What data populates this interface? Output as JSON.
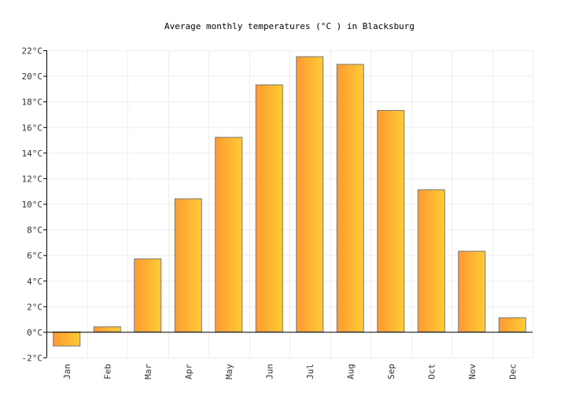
{
  "chart_data": {
    "type": "bar",
    "title": "Average monthly temperatures (°C ) in Blacksburg",
    "categories": [
      "Jan",
      "Feb",
      "Mar",
      "Apr",
      "May",
      "Jun",
      "Jul",
      "Aug",
      "Sep",
      "Oct",
      "Nov",
      "Dec"
    ],
    "values": [
      -1.1,
      0.4,
      5.7,
      10.4,
      15.2,
      19.3,
      21.5,
      20.9,
      17.3,
      11.1,
      6.3,
      1.1
    ],
    "ylim": [
      -2,
      22
    ],
    "yticks": [
      "-2°C",
      "0°C",
      "2°C",
      "4°C",
      "6°C",
      "8°C",
      "10°C",
      "12°C",
      "14°C",
      "16°C",
      "18°C",
      "20°C",
      "22°C"
    ],
    "grid": true,
    "colors": {
      "bar_start": "#ff9933",
      "bar_end": "#ffcc33",
      "bar_border": "#777777",
      "grid": "#eeeeee"
    }
  }
}
